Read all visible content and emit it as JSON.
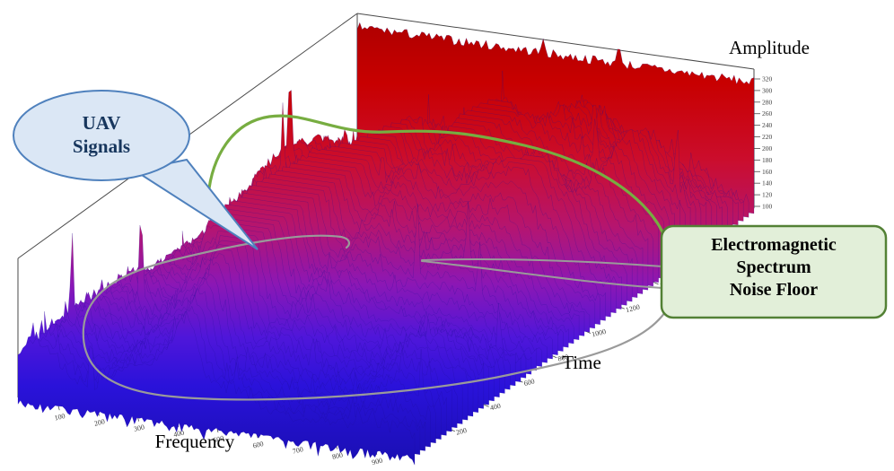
{
  "figure": {
    "axis_titles": {
      "frequency": "Frequency",
      "time": "Time",
      "amplitude": "Amplitude"
    },
    "callouts": {
      "uav": {
        "line1": "UAV",
        "line2": "Signals"
      },
      "noise": {
        "line1": "Electromagnetic",
        "line2": "Spectrum",
        "line3": "Noise Floor"
      }
    },
    "colors": {
      "uav_fill": "#dbe7f5",
      "uav_stroke": "#4f81bd",
      "uav_text": "#17365d",
      "noise_fill": "#e2efd9",
      "noise_stroke": "#538135",
      "noise_text": "#000000",
      "loop_green": "#77ad41",
      "loop_gray": "#9a9a9a",
      "wire": "#4a4a4a",
      "tick_text": "#3c3c3c",
      "background": "#ffffff"
    }
  },
  "chart_data": {
    "type": "surface",
    "description": "3D waterfall spectrogram of received RF amplitude over frequency and time: tall red high-amplitude wall along the far edge, blue electromagnetic spectrum noise floor across the surface, and UAV signal ridges circled by green and gray loops",
    "xlabel": "Frequency",
    "ylabel": "Time",
    "zlabel": "Amplitude",
    "x_ticks": [
      100,
      200,
      300,
      400,
      500,
      600,
      700,
      800,
      900
    ],
    "x_range": [
      0,
      1000
    ],
    "y_ticks": [
      200,
      400,
      600,
      800,
      1000,
      1200,
      1400,
      1600
    ],
    "y_range": [
      0,
      2000
    ],
    "z_ticks": [
      320,
      300,
      280,
      260,
      240,
      220,
      200,
      180,
      160,
      140,
      120,
      100
    ],
    "z_range": [
      90,
      330
    ],
    "colormap": {
      "low": "#1a0fb4",
      "mid": "#b6156e",
      "high": "#ac0000"
    },
    "grid": false,
    "legend": false
  }
}
